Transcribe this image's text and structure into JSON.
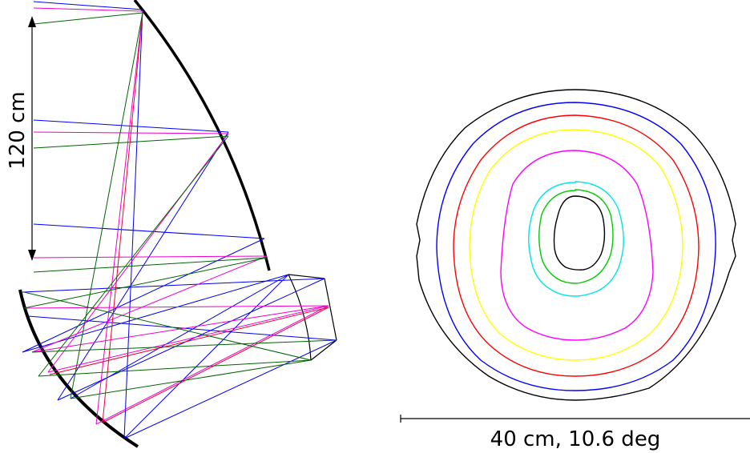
{
  "labels": {
    "vertical_scale": "120 cm",
    "horizontal_scale": "40 cm, 10.6 deg"
  },
  "colors": {
    "mirror": "#000000",
    "ray_blue": "#0000ee",
    "ray_magenta": "#ee00cc",
    "ray_green": "#006400",
    "ray_red": "#ee0033",
    "contour_colors": [
      "#000000",
      "#0000ff",
      "#ff0000",
      "#ffff00",
      "#ff00ff",
      "#00e5e5",
      "#00cc00",
      "#000000"
    ]
  }
}
